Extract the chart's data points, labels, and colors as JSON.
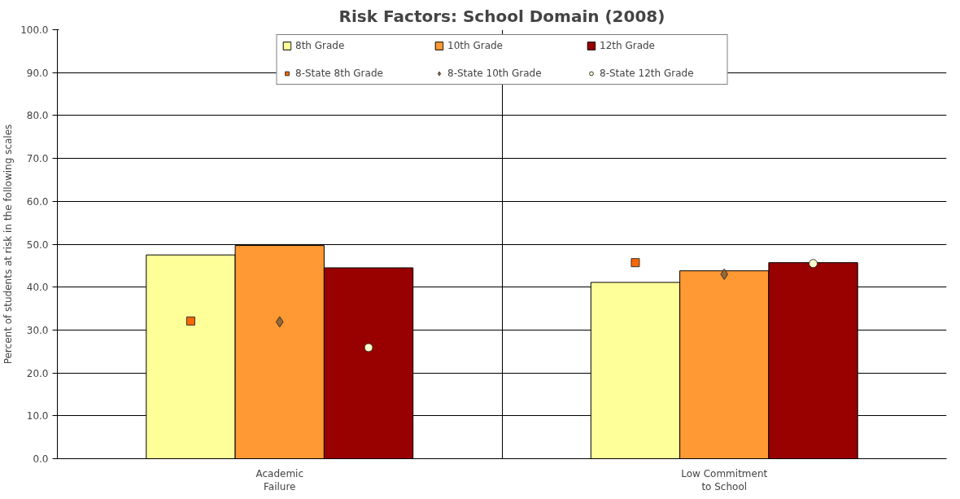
{
  "chart_data": {
    "type": "bar",
    "title": "Risk Factors: School Domain (2008)",
    "ylabel": "Percent of students at risk in the following scales",
    "categories": [
      "Academic Failure",
      "Low Commitment to School"
    ],
    "series": [
      {
        "name": "8th Grade",
        "color": "#ffff99",
        "values": [
          47.5,
          41.1
        ]
      },
      {
        "name": "10th Grade",
        "color": "#ff9933",
        "values": [
          49.7,
          43.8
        ]
      },
      {
        "name": "12th Grade",
        "color": "#990000",
        "values": [
          44.5,
          45.7
        ]
      },
      {
        "name": "8-State 8th Grade",
        "type": "scatter",
        "marker": "square",
        "color": "#ff6600",
        "values": [
          32.1,
          45.7
        ]
      },
      {
        "name": "8-State 10th Grade",
        "type": "scatter",
        "marker": "diamond",
        "color": "#996633",
        "values": [
          31.9,
          43.0
        ]
      },
      {
        "name": "8-State 12th Grade",
        "type": "scatter",
        "marker": "circle",
        "color": "#ffffcc",
        "values": [
          25.9,
          45.5
        ]
      }
    ],
    "ylim": [
      0,
      100
    ],
    "yticks": [
      {
        "value": 0,
        "label": "0.0"
      },
      {
        "value": 10,
        "label": "10.0"
      },
      {
        "value": 20,
        "label": "20.0"
      },
      {
        "value": 30,
        "label": "30.0"
      },
      {
        "value": 40,
        "label": "40.0"
      },
      {
        "value": 50,
        "label": "50.0"
      },
      {
        "value": 60,
        "label": "60.0"
      },
      {
        "value": 70,
        "label": "70.0"
      },
      {
        "value": 80,
        "label": "80.0"
      },
      {
        "value": 90,
        "label": "90.0"
      },
      {
        "value": 100,
        "label": "100.0"
      }
    ],
    "grid": true,
    "legend": "top"
  }
}
